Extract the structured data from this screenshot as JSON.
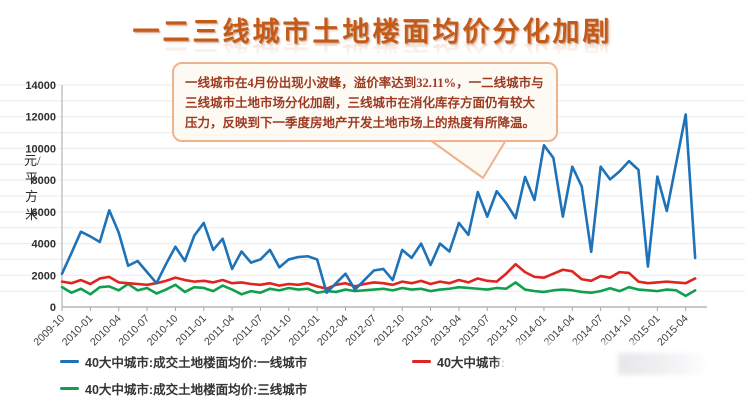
{
  "title": "一二三线城市土地楼面均价分化加剧",
  "annotation": {
    "text": "一线城市在4月份出现小波峰，溢价率达到32.11%，一二线城市与三线城市土地市场分化加剧，三线城市在消化库存方面仍有较大压力，反映到下一季度房地产开发土地市场上的热度有所降温。"
  },
  "y_axis_title": "元/平方米",
  "legend": {
    "tier1_label": "40大中城市:成交土地楼面均价:一线城市",
    "tier2_label": "40大中城市:成交土地楼面",
    "tier3_label": "40大中城市:成交土地楼面均价:三线城市"
  },
  "colors": {
    "title_orange": "#c45a18",
    "tier1_blue": "#1d72b8",
    "tier2_red": "#e02420",
    "tier3_green": "#10a04d",
    "annotation_border": "#eeb38c",
    "annotation_bg": "#fdf9f3",
    "annotation_text": "#9c3a22",
    "grid": "#ebebeb",
    "axis": "#a6a6a6"
  },
  "chart_data": {
    "type": "line",
    "title": "一二三线城市土地楼面均价分化加剧",
    "ylabel": "元/平方米",
    "ylim": [
      0,
      14000
    ],
    "y_ticks": [
      0,
      2000,
      4000,
      6000,
      8000,
      10000,
      12000,
      14000
    ],
    "grid_step": 1000,
    "x_tick_every": 3,
    "legend_position": "bottom",
    "x": [
      "2009-10",
      "2009-11",
      "2009-12",
      "2010-01",
      "2010-02",
      "2010-03",
      "2010-04",
      "2010-05",
      "2010-06",
      "2010-07",
      "2010-08",
      "2010-09",
      "2010-10",
      "2010-11",
      "2010-12",
      "2011-01",
      "2011-02",
      "2011-03",
      "2011-04",
      "2011-05",
      "2011-06",
      "2011-07",
      "2011-08",
      "2011-09",
      "2011-10",
      "2011-11",
      "2011-12",
      "2012-01",
      "2012-02",
      "2012-03",
      "2012-04",
      "2012-05",
      "2012-06",
      "2012-07",
      "2012-08",
      "2012-09",
      "2012-10",
      "2012-11",
      "2012-12",
      "2013-01",
      "2013-02",
      "2013-03",
      "2013-04",
      "2013-05",
      "2013-06",
      "2013-07",
      "2013-08",
      "2013-09",
      "2013-10",
      "2013-11",
      "2013-12",
      "2014-01",
      "2014-02",
      "2014-03",
      "2014-04",
      "2014-05",
      "2014-06",
      "2014-07",
      "2014-08",
      "2014-09",
      "2014-10",
      "2014-11",
      "2014-12",
      "2015-01",
      "2015-02",
      "2015-03",
      "2015-04",
      "2015-05"
    ],
    "series": [
      {
        "name": "40大中城市:成交土地楼面均价:一线城市",
        "color": "#1d72b8",
        "values": [
          2100,
          3400,
          4750,
          4450,
          4100,
          6100,
          4700,
          2600,
          2900,
          2200,
          1500,
          2700,
          3800,
          2900,
          4500,
          5300,
          3600,
          4300,
          2400,
          3500,
          2800,
          3000,
          3600,
          2500,
          3000,
          3150,
          3200,
          3000,
          900,
          1500,
          2100,
          1100,
          1700,
          2300,
          2400,
          1700,
          3600,
          3100,
          4000,
          2650,
          4000,
          3500,
          5300,
          4550,
          7250,
          5700,
          7300,
          6550,
          5600,
          8200,
          6750,
          10200,
          9400,
          5700,
          8850,
          7600,
          3480,
          8850,
          8050,
          8550,
          9200,
          8650,
          2550,
          8230,
          6050,
          9100,
          12140,
          3090
        ]
      },
      {
        "name": "40大中城市:成交土地楼面",
        "color": "#e02420",
        "values": [
          1600,
          1500,
          1700,
          1450,
          1800,
          1900,
          1550,
          1500,
          1450,
          1400,
          1500,
          1650,
          1850,
          1700,
          1600,
          1650,
          1550,
          1700,
          1500,
          1550,
          1450,
          1400,
          1500,
          1350,
          1450,
          1400,
          1500,
          1300,
          1150,
          1400,
          1500,
          1300,
          1450,
          1550,
          1500,
          1400,
          1600,
          1500,
          1650,
          1450,
          1600,
          1500,
          1700,
          1550,
          1800,
          1650,
          1600,
          2100,
          2700,
          2200,
          1900,
          1850,
          2100,
          2350,
          2250,
          1750,
          1650,
          1950,
          1850,
          2200,
          2150,
          1600,
          1500,
          1550,
          1600,
          1550,
          1500,
          1800
        ]
      },
      {
        "name": "40大中城市:成交土地楼面均价:三线城市",
        "color": "#10a04d",
        "values": [
          1250,
          900,
          1150,
          800,
          1250,
          1300,
          1050,
          1450,
          1050,
          1200,
          850,
          1100,
          1400,
          950,
          1250,
          1200,
          1000,
          1350,
          1100,
          800,
          1000,
          900,
          1150,
          1050,
          1200,
          1100,
          1150,
          900,
          1000,
          950,
          1100,
          1000,
          1050,
          1100,
          1150,
          1050,
          1200,
          1100,
          1150,
          1000,
          1100,
          1150,
          1250,
          1200,
          1150,
          1100,
          1200,
          1150,
          1550,
          1100,
          1000,
          950,
          1050,
          1100,
          1050,
          950,
          900,
          1000,
          1180,
          1000,
          1250,
          1100,
          1050,
          1000,
          1100,
          1050,
          700,
          1050
        ]
      }
    ]
  }
}
